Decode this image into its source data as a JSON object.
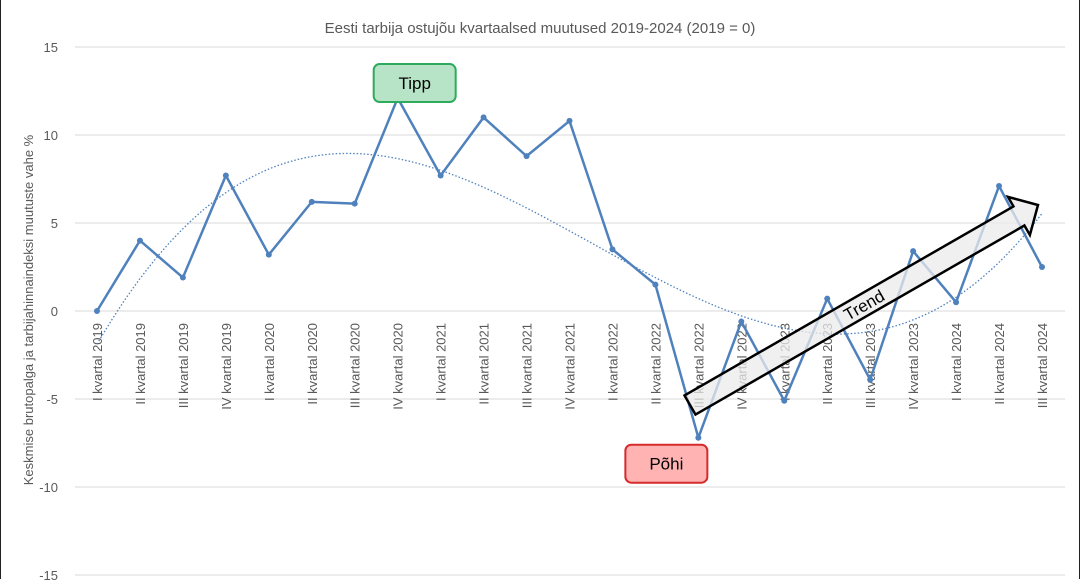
{
  "chart_data": {
    "type": "line",
    "title": "Eesti tarbija ostujõu kvartaalsed muutused 2019-2024 (2019 = 0)",
    "xlabel": "",
    "ylabel": "Keskmise brutopalga ja tarbijahinnaindeksi muutuste vahe %",
    "ylim": [
      -15,
      15
    ],
    "yticks": [
      15,
      10,
      5,
      0,
      -5,
      -10,
      -15
    ],
    "grid": true,
    "categories": [
      "I kvartal 2019",
      "II kvartal 2019",
      "III kvartal 2019",
      "IV kvartal 2019",
      "I kvartal 2020",
      "II kvartal 2020",
      "III kvartal 2020",
      "IV kvartal 2020",
      "I kvartal 2021",
      "II kvartal 2021",
      "III kvartal 2021",
      "IV kvartal 2021",
      "I kvartal 2022",
      "II kvartal 2022",
      "III kvartal 2022",
      "IV kvartal 2022",
      "I kvartal 2023",
      "II kvartal 2023",
      "III kvartal 2023",
      "IV kvartal 2023",
      "I kvartal 2024",
      "II kvartal 2024",
      "III kvartal 2024"
    ],
    "values": [
      0,
      4.0,
      1.9,
      7.7,
      3.2,
      6.2,
      6.1,
      12.1,
      7.7,
      11.0,
      8.8,
      10.8,
      3.5,
      1.5,
      -7.2,
      -0.6,
      -5.1,
      0.7,
      -3.9,
      3.4,
      0.5,
      7.1,
      2.5
    ],
    "trendline": "polynomial",
    "colors": {
      "line": "#4f81bd",
      "trend": "#4f81bd",
      "grid": "#d9d9d9",
      "text": "#595959"
    },
    "annotations": [
      {
        "text": "Tipp",
        "category": "IV kvartal 2020",
        "fill": "#b7e4c7",
        "border": "#2eaa5c"
      },
      {
        "text": "Põhi",
        "category": "III kvartal 2022",
        "fill": "#ffb3b3",
        "border": "#d62b2b"
      },
      {
        "text": "Trend",
        "type": "arrow",
        "from": "III kvartal 2022",
        "to": "III kvartal 2024"
      }
    ]
  }
}
